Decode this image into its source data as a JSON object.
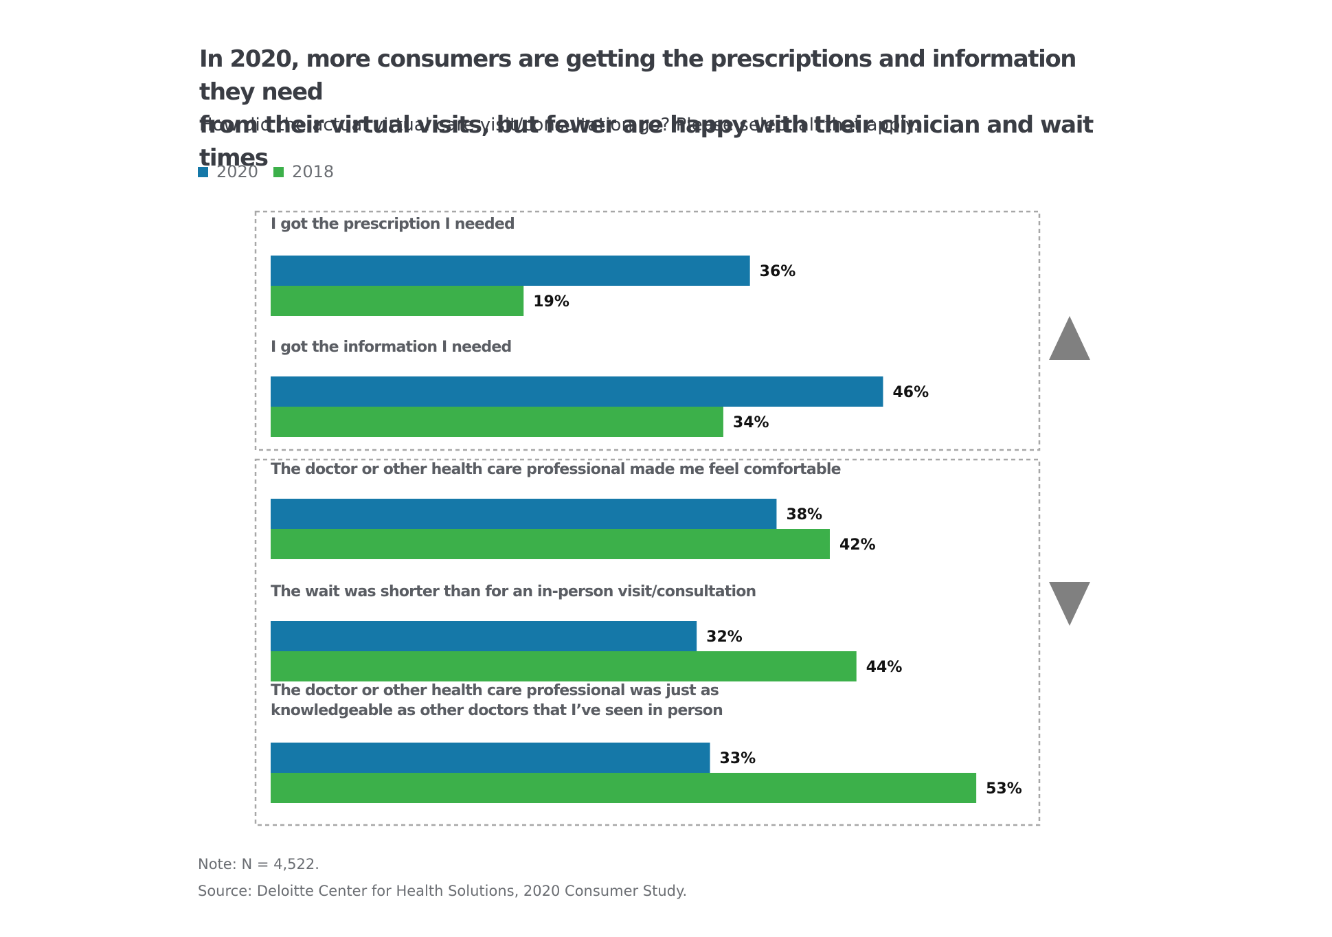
{
  "title_line1": "In 2020, more consumers are getting the prescriptions and information they need",
  "title_line2": "from their virtual visits, but fewer are happy with their clinician and wait times",
  "subtitle": "How did the actual virtual care visit/consultation go? Please select all that apply.",
  "legend": [
    {
      "label": "2020",
      "color": "#1578a8"
    },
    {
      "label": "2018",
      "color": "#3cb04a"
    }
  ],
  "note": "Note: N = 4,522.",
  "source": "Source: Deloitte Center for Health Solutions, 2020 Consumer Study.",
  "indicators": {
    "up_icon": "triangle-up-icon",
    "down_icon": "triangle-down-icon",
    "color": "#808080"
  },
  "chart_data": {
    "type": "bar",
    "orientation": "horizontal",
    "categories": [
      [
        "I got the prescription I needed"
      ],
      [
        "I got the information I needed"
      ],
      [
        "The doctor or other health care professional made me feel comfortable"
      ],
      [
        "The wait was shorter than for an in-person visit/consultation"
      ],
      [
        "The doctor or other health care professional was just as",
        "knowledgeable as other doctors that I’ve seen in person"
      ]
    ],
    "series": [
      {
        "name": "2020",
        "color": "#1578a8",
        "values": [
          36,
          46,
          38,
          32,
          33
        ]
      },
      {
        "name": "2018",
        "color": "#3cb04a",
        "values": [
          19,
          34,
          42,
          44,
          53
        ]
      }
    ],
    "value_suffix": "%",
    "groups": [
      {
        "categories": [
          0,
          1
        ],
        "direction": "up"
      },
      {
        "categories": [
          2,
          3,
          4
        ],
        "direction": "down"
      }
    ]
  }
}
